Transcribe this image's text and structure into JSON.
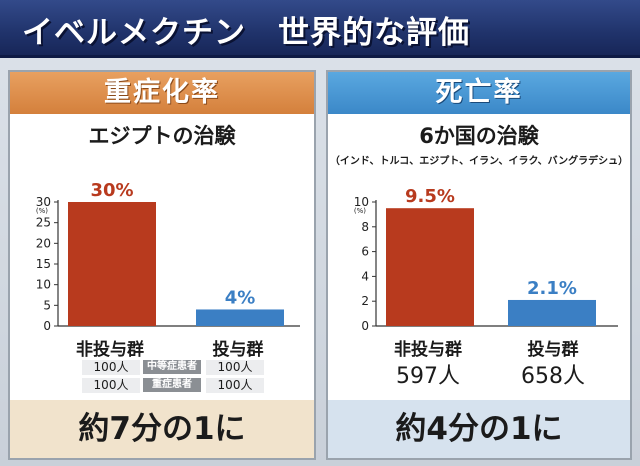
{
  "header": {
    "title": "イベルメクチン　世界的な評価"
  },
  "left_panel": {
    "heading": "重症化率",
    "subtitle": "エジプトの治験",
    "counts": {
      "row1_left": "100人",
      "row1_tag": "中等症患者",
      "row1_right": "100人",
      "row2_left": "100人",
      "row2_tag": "重症患者",
      "row2_right": "100人"
    },
    "conclusion": "約7分の1に"
  },
  "right_panel": {
    "heading": "死亡率",
    "subtitle": "6か国の治験",
    "countries": "（インド、トルコ、エジプト、イラン、イラク、バングラデシュ）",
    "counts": {
      "left": "597人",
      "right": "658人"
    },
    "conclusion": "約4分の1に"
  },
  "chart_data": [
    {
      "type": "bar",
      "title": "重症化率",
      "categories": [
        "非投与群",
        "投与群"
      ],
      "values": [
        30,
        4
      ],
      "value_labels": [
        "30%",
        "4%"
      ],
      "colors": [
        "#b83a1e",
        "#3b7fc4"
      ],
      "ylabel": "(%)",
      "ylim": [
        0,
        30
      ],
      "yticks": [
        0,
        5,
        10,
        15,
        20,
        25,
        30
      ],
      "grid": false
    },
    {
      "type": "bar",
      "title": "死亡率",
      "categories": [
        "非投与群",
        "投与群"
      ],
      "values": [
        9.5,
        2.1
      ],
      "value_labels": [
        "9.5%",
        "2.1%"
      ],
      "colors": [
        "#b83a1e",
        "#3b7fc4"
      ],
      "ylabel": "(%)",
      "ylim": [
        0,
        10
      ],
      "yticks": [
        0,
        2,
        4,
        6,
        8,
        10
      ],
      "grid": false
    }
  ]
}
